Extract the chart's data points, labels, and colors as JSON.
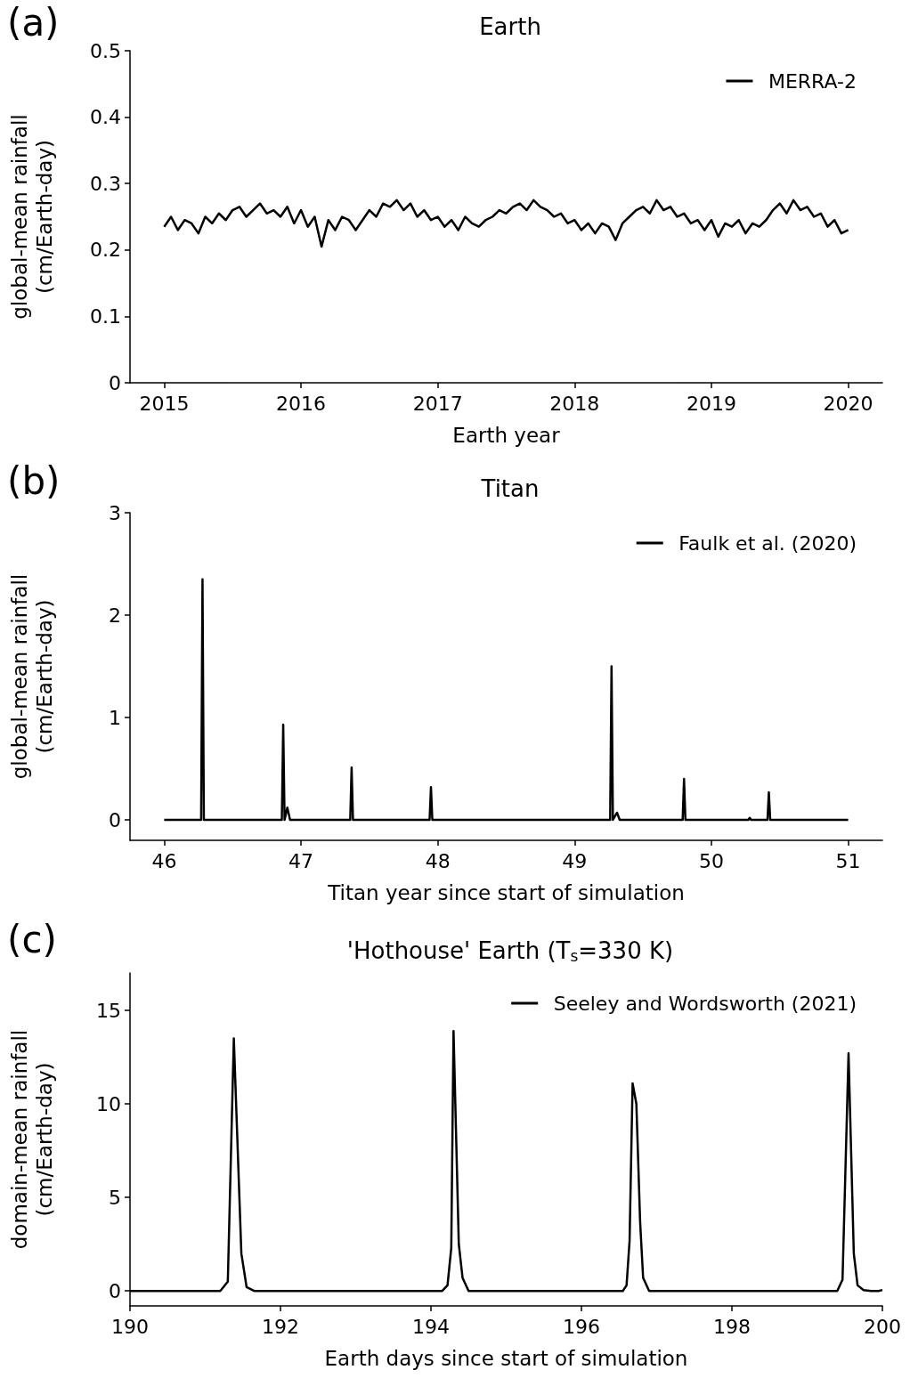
{
  "chart_data": [
    {
      "type": "line",
      "title": "Earth",
      "xlabel": "Earth year",
      "ylabel": "global-mean rainfall\n(cm/Earth-day)",
      "annotations": [
        "(a)"
      ],
      "x": [
        2015,
        2015.05,
        2015.1,
        2015.15,
        2015.2,
        2015.25,
        2015.3,
        2015.35,
        2015.4,
        2015.45,
        2015.5,
        2015.55,
        2015.6,
        2015.65,
        2015.7,
        2015.75,
        2015.8,
        2015.85,
        2015.9,
        2015.95,
        2016,
        2016.05,
        2016.1,
        2016.15,
        2016.2,
        2016.25,
        2016.3,
        2016.35,
        2016.4,
        2016.45,
        2016.5,
        2016.55,
        2016.6,
        2016.65,
        2016.7,
        2016.75,
        2016.8,
        2016.85,
        2016.9,
        2016.95,
        2017,
        2017.05,
        2017.1,
        2017.15,
        2017.2,
        2017.25,
        2017.3,
        2017.35,
        2017.4,
        2017.45,
        2017.5,
        2017.55,
        2017.6,
        2017.65,
        2017.7,
        2017.75,
        2017.8,
        2017.85,
        2017.9,
        2017.95,
        2018,
        2018.05,
        2018.1,
        2018.15,
        2018.2,
        2018.25,
        2018.3,
        2018.35,
        2018.4,
        2018.45,
        2018.5,
        2018.55,
        2018.6,
        2018.65,
        2018.7,
        2018.75,
        2018.8,
        2018.85,
        2018.9,
        2018.95,
        2019,
        2019.05,
        2019.1,
        2019.15,
        2019.2,
        2019.25,
        2019.3,
        2019.35,
        2019.4,
        2019.45,
        2019.5,
        2019.55,
        2019.6,
        2019.65,
        2019.7,
        2019.75,
        2019.8,
        2019.85,
        2019.9,
        2019.95,
        2020
      ],
      "series": [
        {
          "name": "MERRA-2",
          "color": "#000000",
          "values": [
            0.235,
            0.25,
            0.23,
            0.245,
            0.24,
            0.225,
            0.25,
            0.24,
            0.255,
            0.245,
            0.26,
            0.265,
            0.25,
            0.26,
            0.27,
            0.255,
            0.26,
            0.25,
            0.265,
            0.24,
            0.26,
            0.235,
            0.25,
            0.205,
            0.245,
            0.23,
            0.25,
            0.245,
            0.23,
            0.245,
            0.26,
            0.25,
            0.27,
            0.265,
            0.275,
            0.26,
            0.27,
            0.25,
            0.26,
            0.245,
            0.25,
            0.235,
            0.245,
            0.23,
            0.25,
            0.24,
            0.235,
            0.245,
            0.25,
            0.26,
            0.255,
            0.265,
            0.27,
            0.26,
            0.275,
            0.265,
            0.26,
            0.25,
            0.255,
            0.24,
            0.245,
            0.23,
            0.24,
            0.225,
            0.24,
            0.235,
            0.215,
            0.24,
            0.25,
            0.26,
            0.265,
            0.255,
            0.275,
            0.26,
            0.265,
            0.25,
            0.255,
            0.24,
            0.245,
            0.23,
            0.245,
            0.22,
            0.24,
            0.235,
            0.245,
            0.225,
            0.24,
            0.235,
            0.245,
            0.26,
            0.27,
            0.255,
            0.275,
            0.26,
            0.265,
            0.25,
            0.255,
            0.235,
            0.245,
            0.225,
            0.23
          ]
        }
      ],
      "xlim": [
        2014.75,
        2020.25
      ],
      "xticks": [
        2015,
        2016,
        2017,
        2018,
        2019,
        2020
      ],
      "ylim": [
        0,
        0.5
      ],
      "yticks": [
        0,
        0.1,
        0.2,
        0.3,
        0.4,
        0.5
      ],
      "legend": "top right",
      "marker": "none",
      "line_style": "solid",
      "grid": false
    },
    {
      "type": "line",
      "title": "Titan",
      "xlabel": "Titan year since start of simulation",
      "ylabel": "global-mean rainfall\n(cm/Earth-day)",
      "annotations": [
        "(b)"
      ],
      "x": [
        46,
        46.27,
        46.28,
        46.29,
        46.86,
        46.87,
        46.88,
        46.9,
        46.92,
        47.36,
        47.37,
        47.38,
        47.94,
        47.95,
        47.96,
        49.26,
        49.27,
        49.28,
        49.31,
        49.33,
        49.79,
        49.8,
        49.81,
        50.27,
        50.28,
        50.29,
        50.41,
        50.42,
        50.43,
        51
      ],
      "series": [
        {
          "name": "Faulk et al. (2020)",
          "color": "#000000",
          "values": [
            0,
            0,
            2.35,
            0,
            0,
            0.93,
            0,
            0.12,
            0,
            0,
            0.51,
            0,
            0,
            0.32,
            0,
            0,
            1.5,
            0,
            0.07,
            0,
            0,
            0.4,
            0,
            0,
            0.02,
            0,
            0,
            0.27,
            0,
            0
          ]
        }
      ],
      "xlim": [
        45.75,
        51.25
      ],
      "xticks": [
        46,
        47,
        48,
        49,
        50,
        51
      ],
      "ylim": [
        -0.2,
        3
      ],
      "yticks": [
        0,
        1,
        2,
        3
      ],
      "legend": "top right",
      "marker": "none",
      "line_style": "solid",
      "grid": false
    },
    {
      "type": "line",
      "title": "'Hothouse' Earth (T$_{s}$=330 K)",
      "xlabel": "Earth days since start of simulation",
      "ylabel": "domain-mean rainfall\n(cm/Earth-day)",
      "annotations": [
        "(c)"
      ],
      "x": [
        190,
        191.2,
        191.3,
        191.38,
        191.48,
        191.55,
        191.65,
        193,
        194.15,
        194.22,
        194.27,
        194.3,
        194.37,
        194.42,
        194.5,
        196,
        196.55,
        196.6,
        196.64,
        196.68,
        196.73,
        196.78,
        196.82,
        196.9,
        198,
        199.4,
        199.47,
        199.55,
        199.62,
        199.67,
        199.75,
        199.85,
        199.95,
        200
      ],
      "series": [
        {
          "name": "Seeley and Wordsworth (2021)",
          "color": "#000000",
          "values": [
            0,
            0,
            0.5,
            13.5,
            2,
            0.2,
            0,
            0,
            0,
            0.3,
            2.3,
            13.9,
            2.5,
            0.7,
            0,
            0,
            0,
            0.3,
            2.7,
            11.1,
            10,
            3.7,
            0.7,
            0,
            0,
            0,
            0.6,
            12.7,
            2,
            0.3,
            0.05,
            0,
            0,
            0.05
          ]
        }
      ],
      "xlim": [
        190,
        200
      ],
      "xticks": [
        190,
        192,
        194,
        196,
        198,
        200
      ],
      "ylim": [
        -0.8,
        17
      ],
      "yticks": [
        0,
        5,
        10,
        15
      ],
      "legend": "top right",
      "marker": "none",
      "line_style": "solid",
      "grid": false
    }
  ]
}
